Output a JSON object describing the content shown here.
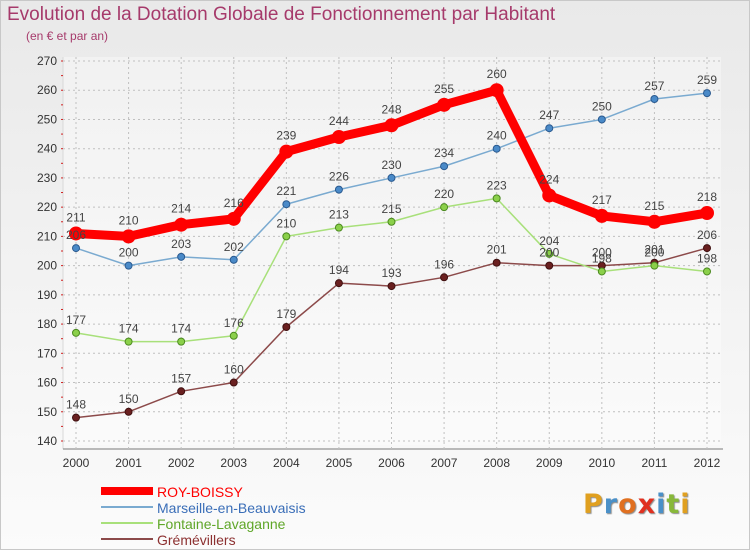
{
  "title": "Evolution de la Dotation Globale de Fonctionnement par Habitant",
  "subtitle": "(en € et par an)",
  "logo": {
    "letters": [
      "P",
      "r",
      "o",
      "x",
      "i",
      "t",
      "i"
    ],
    "colors": [
      "#e0a020",
      "#4a90c8",
      "#e07020",
      "#e03020",
      "#4a90c8",
      "#88b83a",
      "#e0a020"
    ]
  },
  "chart_data": {
    "type": "line",
    "title": "Evolution de la Dotation Globale de Fonctionnement par Habitant",
    "subtitle": "(en € et par an)",
    "x": [
      "2000",
      "2001",
      "2002",
      "2003",
      "2004",
      "2005",
      "2006",
      "2007",
      "2008",
      "2009",
      "2010",
      "2011",
      "2012"
    ],
    "ylim": [
      140,
      270
    ],
    "yticks": [
      140,
      150,
      160,
      170,
      180,
      190,
      200,
      210,
      220,
      230,
      240,
      250,
      260,
      270
    ],
    "grid": "horizontal-dashed",
    "legend": "bottom-left",
    "series": [
      {
        "name": "ROY-BOISSY",
        "color": "#ff0000",
        "legend_color": "#ff0000",
        "values": [
          211,
          210,
          214,
          216,
          239,
          244,
          248,
          255,
          260,
          224,
          217,
          215,
          218
        ]
      },
      {
        "name": "Marseille-en-Beauvaisis",
        "color": "#7aaad0",
        "legend_color": "#3a6eb8",
        "values": [
          206,
          200,
          203,
          202,
          221,
          226,
          230,
          234,
          240,
          247,
          250,
          257,
          259
        ]
      },
      {
        "name": "Fontaine-Lavaganne",
        "color": "#a8e07a",
        "legend_color": "#5fa628",
        "values": [
          177,
          174,
          174,
          176,
          210,
          213,
          215,
          220,
          223,
          204,
          198,
          200,
          198
        ]
      },
      {
        "name": "Grémévillers",
        "color": "#8c4a4a",
        "legend_color": "#8c3030",
        "values": [
          148,
          150,
          157,
          160,
          179,
          194,
          193,
          196,
          201,
          200,
          200,
          201,
          206
        ]
      }
    ]
  }
}
